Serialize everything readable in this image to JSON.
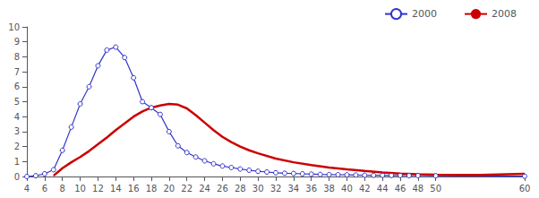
{
  "chart_data": {
    "type": "line",
    "xlim": [
      4,
      60
    ],
    "ylim": [
      0,
      10
    ],
    "xticks": [
      4,
      6,
      8,
      10,
      12,
      14,
      16,
      18,
      20,
      22,
      24,
      26,
      28,
      30,
      32,
      34,
      36,
      38,
      40,
      42,
      44,
      46,
      48,
      50,
      60
    ],
    "yticks": [
      0,
      1,
      2,
      3,
      4,
      5,
      6,
      7,
      8,
      9,
      10
    ],
    "grid": false,
    "legend": "upper right",
    "series": [
      {
        "name": "2000",
        "color": "#3333cc",
        "marker": "circle",
        "x": [
          4,
          5,
          6,
          7,
          8,
          9,
          10,
          11,
          12,
          13,
          14,
          15,
          16,
          17,
          18,
          19,
          20,
          21,
          22,
          23,
          24,
          25,
          26,
          27,
          28,
          29,
          30,
          31,
          32,
          33,
          34,
          35,
          36,
          37,
          38,
          39,
          40,
          41,
          42,
          43,
          44,
          45,
          46,
          47,
          48,
          50,
          60
        ],
        "values": [
          0.0,
          0.05,
          0.18,
          0.45,
          1.75,
          3.3,
          4.85,
          6.0,
          7.4,
          8.45,
          8.65,
          7.95,
          6.6,
          5.0,
          4.6,
          4.15,
          3.0,
          2.05,
          1.6,
          1.3,
          1.05,
          0.85,
          0.7,
          0.6,
          0.5,
          0.42,
          0.35,
          0.3,
          0.25,
          0.22,
          0.2,
          0.18,
          0.16,
          0.14,
          0.13,
          0.12,
          0.11,
          0.1,
          0.09,
          0.08,
          0.08,
          0.07,
          0.07,
          0.06,
          0.06,
          0.05,
          0.02
        ]
      },
      {
        "name": "2008",
        "color": "#cc0000",
        "marker": "none",
        "x": [
          7,
          8,
          9,
          10,
          11,
          12,
          13,
          14,
          15,
          16,
          17,
          18,
          19,
          20,
          21,
          22,
          23,
          24,
          25,
          26,
          27,
          28,
          29,
          30,
          32,
          34,
          36,
          38,
          40,
          42,
          44,
          46,
          48,
          50,
          55,
          60
        ],
        "values": [
          0.05,
          0.55,
          0.95,
          1.3,
          1.7,
          2.15,
          2.6,
          3.1,
          3.55,
          4.0,
          4.35,
          4.6,
          4.75,
          4.85,
          4.8,
          4.55,
          4.1,
          3.6,
          3.1,
          2.65,
          2.3,
          2.0,
          1.75,
          1.55,
          1.2,
          0.95,
          0.77,
          0.6,
          0.48,
          0.37,
          0.27,
          0.2,
          0.15,
          0.12,
          0.1,
          0.18
        ]
      }
    ]
  }
}
